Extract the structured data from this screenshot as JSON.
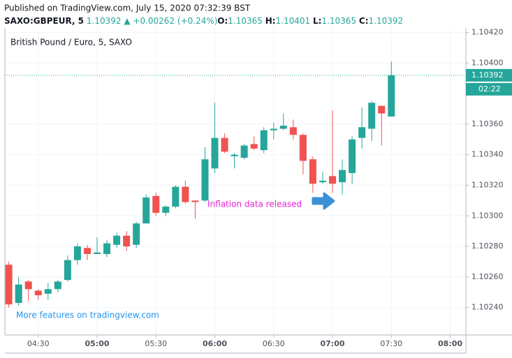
{
  "header": {
    "published": "Published on TradingView.com, July 15, 2020 07:32:39 BST",
    "symbol": "SAXO:GBPEUR, 5",
    "last": "1.10392",
    "change_sign": "▲",
    "change": "+0.00262 (+0.24%)",
    "o_label": "O:",
    "o": "1.10365",
    "h_label": "H:",
    "h": "1.10401",
    "l_label": "L:",
    "l": "1.10365",
    "c_label": "C:",
    "c": "1.10392"
  },
  "chart_data": {
    "type": "candlestick",
    "title": "British Pound / Euro, 5, SAXO",
    "x": [
      "04:15",
      "04:20",
      "04:25",
      "04:30",
      "04:35",
      "04:40",
      "04:45",
      "04:50",
      "04:55",
      "05:00",
      "05:05",
      "05:10",
      "05:15",
      "05:20",
      "05:25",
      "05:30",
      "05:35",
      "05:40",
      "05:45",
      "05:50",
      "05:55",
      "06:00",
      "06:05",
      "06:10",
      "06:15",
      "06:20",
      "06:25",
      "06:30",
      "06:35",
      "06:40",
      "06:45",
      "06:50",
      "06:55",
      "07:00",
      "07:05",
      "07:10",
      "07:15",
      "07:20",
      "07:25",
      "07:30"
    ],
    "open": [
      1.10268,
      1.10243,
      1.10257,
      1.10251,
      1.10249,
      1.10252,
      1.10258,
      1.10271,
      1.10279,
      1.10275,
      1.10275,
      1.10281,
      1.10287,
      1.10281,
      1.10295,
      1.10313,
      1.10302,
      1.10306,
      1.10319,
      1.1031,
      1.1031,
      1.10331,
      1.10351,
      1.10339,
      1.10338,
      1.10347,
      1.10343,
      1.10356,
      1.10357,
      1.10358,
      1.10353,
      1.10337,
      1.10322,
      1.10326,
      1.10322,
      1.10328,
      1.10351,
      1.10357,
      1.10372,
      1.10365
    ],
    "high": [
      1.1027,
      1.1026,
      1.10258,
      1.10252,
      1.10256,
      1.10258,
      1.10274,
      1.10282,
      1.10281,
      1.10286,
      1.10284,
      1.10289,
      1.1029,
      1.10296,
      1.10314,
      1.10315,
      1.10307,
      1.1032,
      1.10323,
      1.1031,
      1.10345,
      1.10374,
      1.10354,
      1.10341,
      1.10347,
      1.10352,
      1.10358,
      1.10361,
      1.10367,
      1.10363,
      1.10354,
      1.10339,
      1.10329,
      1.10369,
      1.10337,
      1.10352,
      1.10371,
      1.10375,
      1.10372,
      1.10401
    ],
    "low": [
      1.1024,
      1.10241,
      1.10244,
      1.10245,
      1.10245,
      1.1025,
      1.10257,
      1.10268,
      1.10271,
      1.10275,
      1.10273,
      1.10279,
      1.10277,
      1.10279,
      1.10295,
      1.103,
      1.103,
      1.10305,
      1.10308,
      1.10298,
      1.10309,
      1.10328,
      1.10341,
      1.10331,
      1.10337,
      1.10343,
      1.10341,
      1.1035,
      1.10356,
      1.1035,
      1.10327,
      1.10315,
      1.10321,
      1.10315,
      1.10314,
      1.10321,
      1.10344,
      1.10349,
      1.10346,
      1.10365
    ],
    "close": [
      1.10242,
      1.10255,
      1.10252,
      1.10248,
      1.10252,
      1.10257,
      1.10271,
      1.1028,
      1.10275,
      1.10276,
      1.10282,
      1.10287,
      1.1028,
      1.10295,
      1.10312,
      1.10302,
      1.10306,
      1.10319,
      1.10309,
      1.10309,
      1.10337,
      1.10351,
      1.10342,
      1.1034,
      1.10346,
      1.10344,
      1.10356,
      1.10357,
      1.10359,
      1.10353,
      1.10336,
      1.10321,
      1.10323,
      1.10321,
      1.1033,
      1.1035,
      1.10358,
      1.10374,
      1.10367,
      1.10392
    ],
    "up_color": "#26a69a",
    "down_color": "#ef5350",
    "xlim": [
      "04:13",
      "08:08"
    ],
    "xticks": [
      "04:30",
      "05:00",
      "05:30",
      "06:00",
      "06:30",
      "07:00",
      "07:30",
      "08:00"
    ],
    "ylim": [
      1.10222,
      1.10423
    ],
    "yticks": [
      {
        "value": 1.1042,
        "label": "1.10420"
      },
      {
        "value": 1.104,
        "label": "1.10400"
      },
      {
        "value": 1.1036,
        "label": "1.10360"
      },
      {
        "value": 1.1034,
        "label": "1.10340"
      },
      {
        "value": 1.1032,
        "label": "1.10320"
      },
      {
        "value": 1.103,
        "label": "1.10300"
      },
      {
        "value": 1.1028,
        "label": "1.10280"
      },
      {
        "value": 1.1026,
        "label": "1.10260"
      },
      {
        "value": 1.1024,
        "label": "1.10240"
      }
    ],
    "grid": true,
    "current_price": {
      "value": 1.10392,
      "label": "1.10392"
    },
    "countdown": "02:22",
    "annotation": "Inflation data released",
    "watermark": "More features on tradingview.com"
  }
}
